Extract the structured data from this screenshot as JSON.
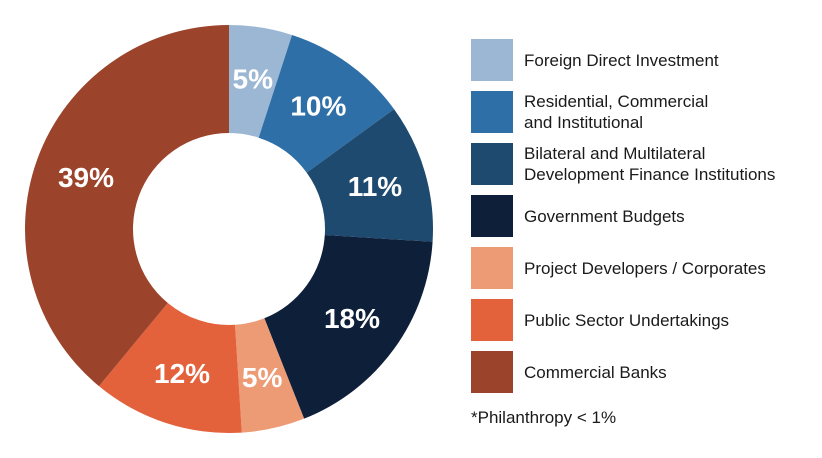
{
  "chart_data": {
    "type": "pie",
    "donut": true,
    "slices": [
      {
        "label": "Foreign Direct Investment",
        "value": 5,
        "display": "5%",
        "color": "#9bb7d3"
      },
      {
        "label": "Residential, Commercial and Institutional",
        "label_lines": [
          "Residential, Commercial",
          "and Institutional"
        ],
        "value": 10,
        "display": "10%",
        "color": "#2e6fa7"
      },
      {
        "label": "Bilateral and Multilateral Development Finance Institutions",
        "label_lines": [
          "Bilateral and Multilateral",
          "Development Finance Institutions"
        ],
        "value": 11,
        "display": "11%",
        "color": "#1f4a70"
      },
      {
        "label": "Government Budgets",
        "value": 18,
        "display": "18%",
        "color": "#0e1f3a"
      },
      {
        "label": "Project Developers / Corporates",
        "value": 5,
        "display": "5%",
        "color": "#ed9b75"
      },
      {
        "label": "Public Sector Undertakings",
        "value": 12,
        "display": "12%",
        "color": "#e3623c"
      },
      {
        "label": "Commercial Banks",
        "value": 39,
        "display": "39%",
        "color": "#9b432b"
      }
    ],
    "legend_position": "right",
    "footnote": "*Philanthropy < 1%"
  }
}
